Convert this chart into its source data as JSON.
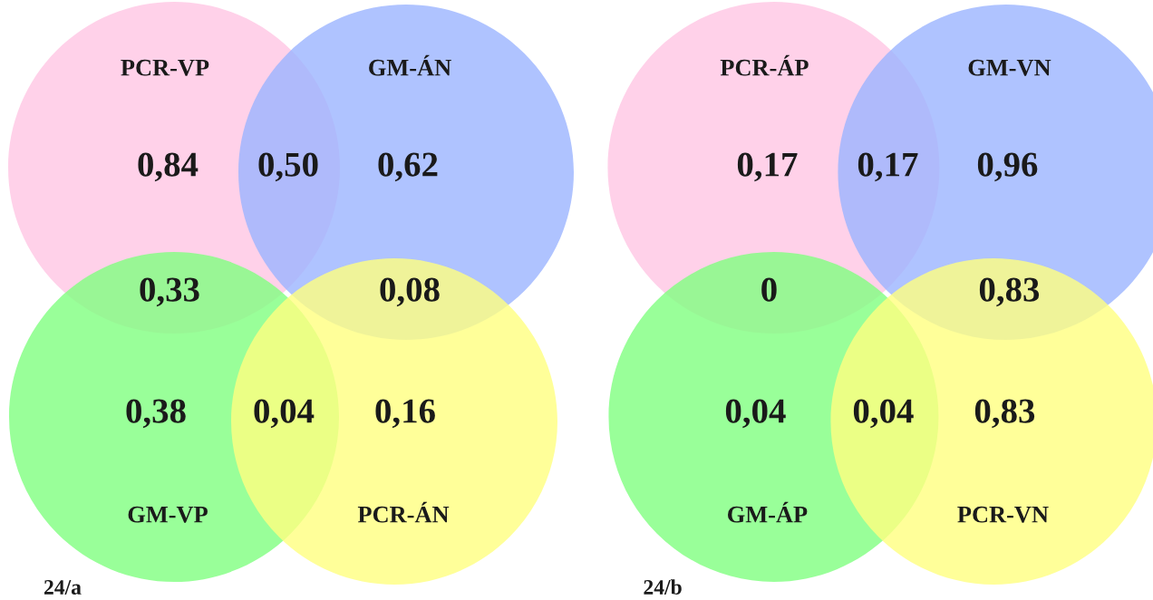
{
  "chart_data": [
    {
      "type": "other",
      "annotations": [
        "PCR-VP",
        "GM-ÁN",
        "GM-VP",
        "PCR-ÁN",
        "24/a"
      ],
      "categories": [
        null,
        null,
        null,
        null,
        null,
        null,
        null,
        null
      ],
      "values": [
        0.84,
        0.5,
        0.62,
        0.33,
        0.08,
        0.38,
        0.04,
        0.16
      ],
      "value_labels": [
        "0,84",
        "0,50",
        "0,62",
        "0,33",
        "0,08",
        "0,38",
        "0,04",
        "0,16"
      ]
    },
    {
      "type": "other",
      "annotations": [
        "PCR-ÁP",
        "GM-VN",
        "GM-ÁP",
        "PCR-VN",
        "24/b"
      ],
      "categories": [
        null,
        null,
        null,
        null,
        null,
        null,
        null,
        null
      ],
      "values": [
        0.17,
        0.17,
        0.96,
        0,
        0.83,
        0.04,
        0.04,
        0.83
      ],
      "value_labels": [
        "0,17",
        "0,17",
        "0,96",
        "0",
        "0,83",
        "0,04",
        "0,04",
        "0,83"
      ]
    }
  ]
}
